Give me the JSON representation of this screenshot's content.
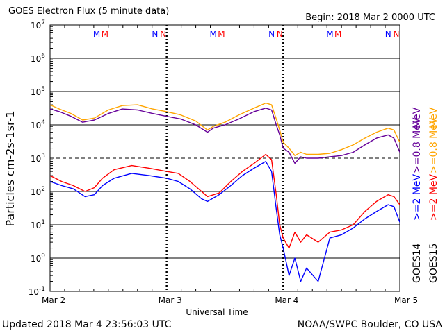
{
  "header": {
    "title": "GOES Electron Flux (5 minute data)",
    "begin": "Begin: 2018 Mar 2 0000 UTC"
  },
  "footer": {
    "updated": "Updated 2018 Mar  4 23:56:03 UTC",
    "credit": "NOAA/SWPC Boulder, CO USA"
  },
  "colors": {
    "primary_2mev": "#0000ff",
    "secondary_2mev": "#ff0000",
    "primary_08mev": "#660099",
    "secondary_08mev": "#ffa500"
  },
  "chart_data": {
    "type": "line",
    "title": "GOES Electron Flux (5 minute data)",
    "xlabel": "Universal Time",
    "ylabel": "Particles cm-2s-1sr-1",
    "y_scale": "log",
    "ylim": [
      0.1,
      10000000
    ],
    "y_ticks": [
      {
        "value": 0.1,
        "base": "10",
        "exp": "-1"
      },
      {
        "value": 1,
        "base": "10",
        "exp": "0"
      },
      {
        "value": 10,
        "base": "10",
        "exp": "1"
      },
      {
        "value": 100,
        "base": "10",
        "exp": "2"
      },
      {
        "value": 1000,
        "base": "10",
        "exp": "3"
      },
      {
        "value": 10000,
        "base": "10",
        "exp": "4"
      },
      {
        "value": 100000,
        "base": "10",
        "exp": "5"
      },
      {
        "value": 1000000,
        "base": "10",
        "exp": "6"
      },
      {
        "value": 10000000,
        "base": "10",
        "exp": "7"
      }
    ],
    "xlim": [
      0,
      3
    ],
    "x_ticks": [
      {
        "value": 0,
        "label": "Mar 2"
      },
      {
        "value": 1,
        "label": "Mar 3"
      },
      {
        "value": 2,
        "label": "Mar 4"
      },
      {
        "value": 3,
        "label": "Mar 5"
      }
    ],
    "threshold_line": 1000,
    "markers": [
      {
        "day": 0.4,
        "letter": "M",
        "color": "#0000ff"
      },
      {
        "day": 0.47,
        "letter": "M",
        "color": "#ff0000"
      },
      {
        "day": 0.9,
        "letter": "N",
        "color": "#0000ff"
      },
      {
        "day": 0.97,
        "letter": "N",
        "color": "#ff0000"
      },
      {
        "day": 1.4,
        "letter": "M",
        "color": "#0000ff"
      },
      {
        "day": 1.47,
        "letter": "M",
        "color": "#ff0000"
      },
      {
        "day": 1.9,
        "letter": "N",
        "color": "#0000ff"
      },
      {
        "day": 1.97,
        "letter": "N",
        "color": "#ff0000"
      },
      {
        "day": 2.4,
        "letter": "M",
        "color": "#0000ff"
      },
      {
        "day": 2.47,
        "letter": "M",
        "color": "#ff0000"
      },
      {
        "day": 2.9,
        "letter": "N",
        "color": "#0000ff"
      },
      {
        "day": 2.97,
        "letter": "N",
        "color": "#ff0000"
      }
    ],
    "legend": {
      "placement": "right",
      "satellites": [
        "GOES14",
        "GOES15"
      ],
      "energies": [
        ">=0.8 MeV",
        ">=2 MeV"
      ],
      "unit": "MeV"
    },
    "series": [
      {
        "name": "GOES14 >=0.8 MeV",
        "color": "#660099",
        "x": [
          0,
          0.08,
          0.18,
          0.28,
          0.38,
          0.5,
          0.62,
          0.75,
          0.88,
          1.0,
          1.12,
          1.25,
          1.35,
          1.4,
          1.5,
          1.62,
          1.75,
          1.85,
          1.9,
          1.94,
          1.97,
          2.0,
          2.05,
          2.1,
          2.15,
          2.2,
          2.3,
          2.4,
          2.5,
          2.6,
          2.7,
          2.8,
          2.9,
          2.95,
          3.0
        ],
        "y": [
          30000,
          25000,
          18000,
          12000,
          14000,
          22000,
          30000,
          28000,
          22000,
          18000,
          15000,
          10000,
          6000,
          8000,
          10000,
          15000,
          25000,
          32000,
          28000,
          10000,
          5000,
          2000,
          1500,
          700,
          1100,
          1000,
          1000,
          1100,
          1200,
          1500,
          2500,
          4000,
          5000,
          4000,
          1500
        ]
      },
      {
        "name": "GOES15 >=0.8 MeV",
        "color": "#ffa500",
        "x": [
          0,
          0.08,
          0.18,
          0.28,
          0.38,
          0.5,
          0.62,
          0.75,
          0.88,
          1.0,
          1.12,
          1.25,
          1.35,
          1.4,
          1.5,
          1.62,
          1.75,
          1.85,
          1.9,
          1.94,
          1.97,
          2.0,
          2.05,
          2.1,
          2.15,
          2.2,
          2.3,
          2.4,
          2.5,
          2.6,
          2.7,
          2.8,
          2.9,
          2.95,
          3.0
        ],
        "y": [
          40000,
          30000,
          22000,
          14000,
          16000,
          28000,
          38000,
          40000,
          30000,
          25000,
          20000,
          13000,
          7000,
          9000,
          12000,
          20000,
          32000,
          45000,
          40000,
          15000,
          7000,
          3000,
          2000,
          1200,
          1500,
          1300,
          1300,
          1400,
          1800,
          2500,
          4000,
          6000,
          8000,
          7000,
          3000
        ]
      },
      {
        "name": "GOES14 >=2 MeV",
        "color": "#0000ff",
        "x": [
          0,
          0.1,
          0.2,
          0.3,
          0.38,
          0.45,
          0.55,
          0.7,
          0.85,
          1.0,
          1.1,
          1.2,
          1.3,
          1.35,
          1.45,
          1.55,
          1.65,
          1.75,
          1.85,
          1.9,
          1.94,
          1.97,
          2.0,
          2.05,
          2.1,
          2.15,
          2.2,
          2.3,
          2.4,
          2.5,
          2.6,
          2.7,
          2.8,
          2.9,
          2.95,
          3.0
        ],
        "y": [
          200,
          150,
          120,
          70,
          80,
          150,
          250,
          350,
          300,
          250,
          200,
          120,
          60,
          50,
          80,
          150,
          300,
          500,
          800,
          400,
          30,
          5,
          2,
          0.3,
          1,
          0.2,
          0.5,
          0.2,
          4,
          5,
          8,
          15,
          25,
          40,
          35,
          12
        ]
      },
      {
        "name": "GOES15 >=2 MeV",
        "color": "#ff0000",
        "x": [
          0,
          0.1,
          0.2,
          0.3,
          0.38,
          0.45,
          0.55,
          0.7,
          0.85,
          1.0,
          1.1,
          1.2,
          1.3,
          1.35,
          1.45,
          1.55,
          1.65,
          1.75,
          1.85,
          1.9,
          1.94,
          1.97,
          2.0,
          2.05,
          2.1,
          2.15,
          2.2,
          2.3,
          2.4,
          2.5,
          2.6,
          2.7,
          2.8,
          2.9,
          2.95,
          3.0
        ],
        "y": [
          300,
          200,
          150,
          100,
          130,
          250,
          450,
          600,
          500,
          400,
          350,
          200,
          100,
          70,
          90,
          200,
          400,
          700,
          1300,
          900,
          80,
          10,
          4,
          2,
          6,
          3,
          5,
          3,
          6,
          7,
          10,
          25,
          50,
          80,
          70,
          40
        ]
      }
    ]
  }
}
